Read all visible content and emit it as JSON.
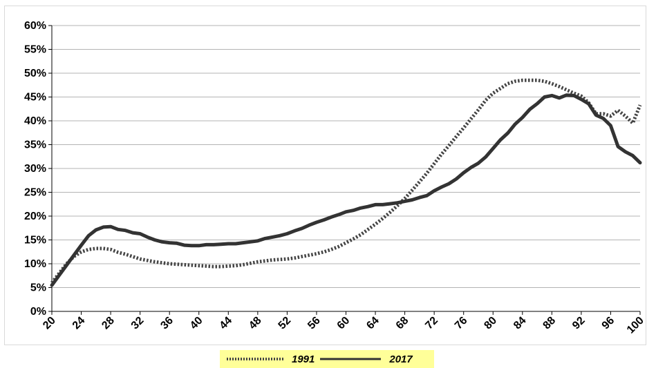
{
  "chart_data": {
    "type": "line",
    "title": "",
    "xlabel": "",
    "ylabel": "",
    "xlim": [
      20,
      100
    ],
    "ylim": [
      0,
      60
    ],
    "grid": true,
    "legend_placement": "bottom",
    "legend_background": "#ffff99",
    "x_ticks": [
      "20",
      "24",
      "28",
      "32",
      "36",
      "40",
      "44",
      "48",
      "52",
      "56",
      "60",
      "64",
      "68",
      "72",
      "76",
      "80",
      "84",
      "88",
      "92",
      "96",
      "100"
    ],
    "y_ticks": [
      "0%",
      "5%",
      "10%",
      "15%",
      "20%",
      "25%",
      "30%",
      "35%",
      "40%",
      "45%",
      "50%",
      "55%",
      "60%"
    ],
    "x": [
      20,
      21,
      22,
      23,
      24,
      25,
      26,
      27,
      28,
      29,
      30,
      31,
      32,
      33,
      34,
      35,
      36,
      37,
      38,
      39,
      40,
      41,
      42,
      43,
      44,
      45,
      46,
      47,
      48,
      49,
      50,
      51,
      52,
      53,
      54,
      55,
      56,
      57,
      58,
      59,
      60,
      61,
      62,
      63,
      64,
      65,
      66,
      67,
      68,
      69,
      70,
      71,
      72,
      73,
      74,
      75,
      76,
      77,
      78,
      79,
      80,
      81,
      82,
      83,
      84,
      85,
      86,
      87,
      88,
      89,
      90,
      91,
      92,
      93,
      94,
      95,
      96,
      97,
      98,
      99,
      100
    ],
    "series": [
      {
        "name": "1991",
        "style": "dotted",
        "color": "#444444",
        "values": [
          6.0,
          8.0,
          10.0,
          11.5,
          12.5,
          13.0,
          13.2,
          13.2,
          13.0,
          12.4,
          12.0,
          11.5,
          11.0,
          10.7,
          10.4,
          10.2,
          10.0,
          9.9,
          9.8,
          9.7,
          9.6,
          9.5,
          9.4,
          9.4,
          9.5,
          9.6,
          9.8,
          10.1,
          10.4,
          10.6,
          10.8,
          10.9,
          11.0,
          11.2,
          11.5,
          11.8,
          12.1,
          12.5,
          13.0,
          13.6,
          14.4,
          15.2,
          16.1,
          17.2,
          18.3,
          19.5,
          20.8,
          22.2,
          23.7,
          25.4,
          27.2,
          29.0,
          31.0,
          33.0,
          34.8,
          36.7,
          38.5,
          40.4,
          42.3,
          44.3,
          45.8,
          46.8,
          47.8,
          48.3,
          48.5,
          48.5,
          48.5,
          48.3,
          47.8,
          47.2,
          46.5,
          45.8,
          45.2,
          43.8,
          41.5,
          41.5,
          41.0,
          42.2,
          41.0,
          39.5,
          43.3
        ]
      },
      {
        "name": "2017",
        "style": "solid",
        "color": "#333333",
        "values": [
          5.5,
          7.6,
          9.7,
          11.8,
          13.9,
          15.9,
          17.1,
          17.7,
          17.8,
          17.2,
          17.0,
          16.5,
          16.3,
          15.6,
          15.0,
          14.6,
          14.4,
          14.3,
          13.9,
          13.8,
          13.8,
          14.0,
          14.0,
          14.1,
          14.2,
          14.2,
          14.4,
          14.6,
          14.8,
          15.3,
          15.6,
          15.9,
          16.3,
          16.9,
          17.4,
          18.1,
          18.7,
          19.2,
          19.8,
          20.3,
          20.9,
          21.2,
          21.7,
          22.0,
          22.4,
          22.4,
          22.6,
          22.8,
          23.1,
          23.4,
          23.9,
          24.3,
          25.3,
          26.1,
          26.8,
          27.8,
          29.1,
          30.2,
          31.1,
          32.4,
          34.2,
          36.0,
          37.4,
          39.3,
          40.7,
          42.4,
          43.6,
          45.0,
          45.3,
          44.8,
          45.4,
          45.3,
          44.5,
          43.6,
          41.2,
          40.5,
          39.0,
          34.6,
          33.5,
          32.7,
          31.2
        ]
      }
    ]
  }
}
